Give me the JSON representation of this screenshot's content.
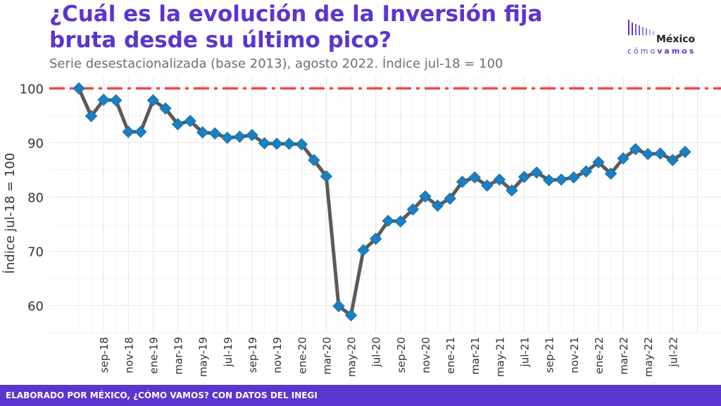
{
  "header": {
    "title": "¿Cuál es la evolución de la Inversión fija bruta desde su último pico?",
    "subtitle": "Serie desestacionalizada (base 2013), agosto 2022. Índice jul-18 = 100"
  },
  "logo": {
    "word": "México",
    "sub_light": "cómo",
    "sub_bold": "vamos"
  },
  "footer": {
    "text": "ELABORADO POR MÉXICO, ¿CÓMO VAMOS? CON DATOS DEL INEGI"
  },
  "colors": {
    "accent": "#5b35cf",
    "line": "#5a5a5a",
    "marker": "#1b80c2",
    "reference": "#f04a4a"
  },
  "chart_data": {
    "type": "line",
    "ylabel": "Índice jul-18 = 100",
    "xlabel": "",
    "ylim": [
      55,
      102
    ],
    "y_ticks": [
      60,
      70,
      80,
      90,
      100
    ],
    "reference_line": 100,
    "grid": true,
    "x_tick_labels": [
      "sep-18",
      "nov-18",
      "ene-19",
      "mar-19",
      "may-19",
      "jul-19",
      "sep-19",
      "nov-19",
      "ene-20",
      "mar-20",
      "may-20",
      "jul-20",
      "sep-20",
      "nov-20",
      "ene-21",
      "mar-21",
      "may-21",
      "jul-21",
      "sep-21",
      "nov-21",
      "ene-22",
      "mar-22",
      "may-22",
      "jul-22"
    ],
    "x": [
      "jul-18",
      "ago-18",
      "sep-18",
      "oct-18",
      "nov-18",
      "dic-18",
      "ene-19",
      "feb-19",
      "mar-19",
      "abr-19",
      "may-19",
      "jun-19",
      "jul-19",
      "ago-19",
      "sep-19",
      "oct-19",
      "nov-19",
      "dic-19",
      "ene-20",
      "feb-20",
      "mar-20",
      "abr-20",
      "may-20",
      "jun-20",
      "jul-20",
      "ago-20",
      "sep-20",
      "oct-20",
      "nov-20",
      "dic-20",
      "ene-21",
      "feb-21",
      "mar-21",
      "abr-21",
      "may-21",
      "jun-21",
      "jul-21",
      "ago-21",
      "sep-21",
      "oct-21",
      "nov-21",
      "dic-21",
      "ene-22",
      "feb-22",
      "mar-22",
      "abr-22",
      "may-22",
      "jun-22",
      "jul-22",
      "ago-22"
    ],
    "values": [
      100,
      94.9,
      97.9,
      97.8,
      92.0,
      92.0,
      97.8,
      96.3,
      93.4,
      94.0,
      91.9,
      91.7,
      90.9,
      91.1,
      91.4,
      89.9,
      89.8,
      89.8,
      89.7,
      86.8,
      83.8,
      59.9,
      58.2,
      70.2,
      72.3,
      75.6,
      75.5,
      77.7,
      80.1,
      78.4,
      79.7,
      82.8,
      83.6,
      82.1,
      83.2,
      81.2,
      83.7,
      84.5,
      83.1,
      83.2,
      83.6,
      84.7,
      86.4,
      84.3,
      87.1,
      88.8,
      87.9,
      88.0,
      86.8,
      88.3
    ]
  }
}
